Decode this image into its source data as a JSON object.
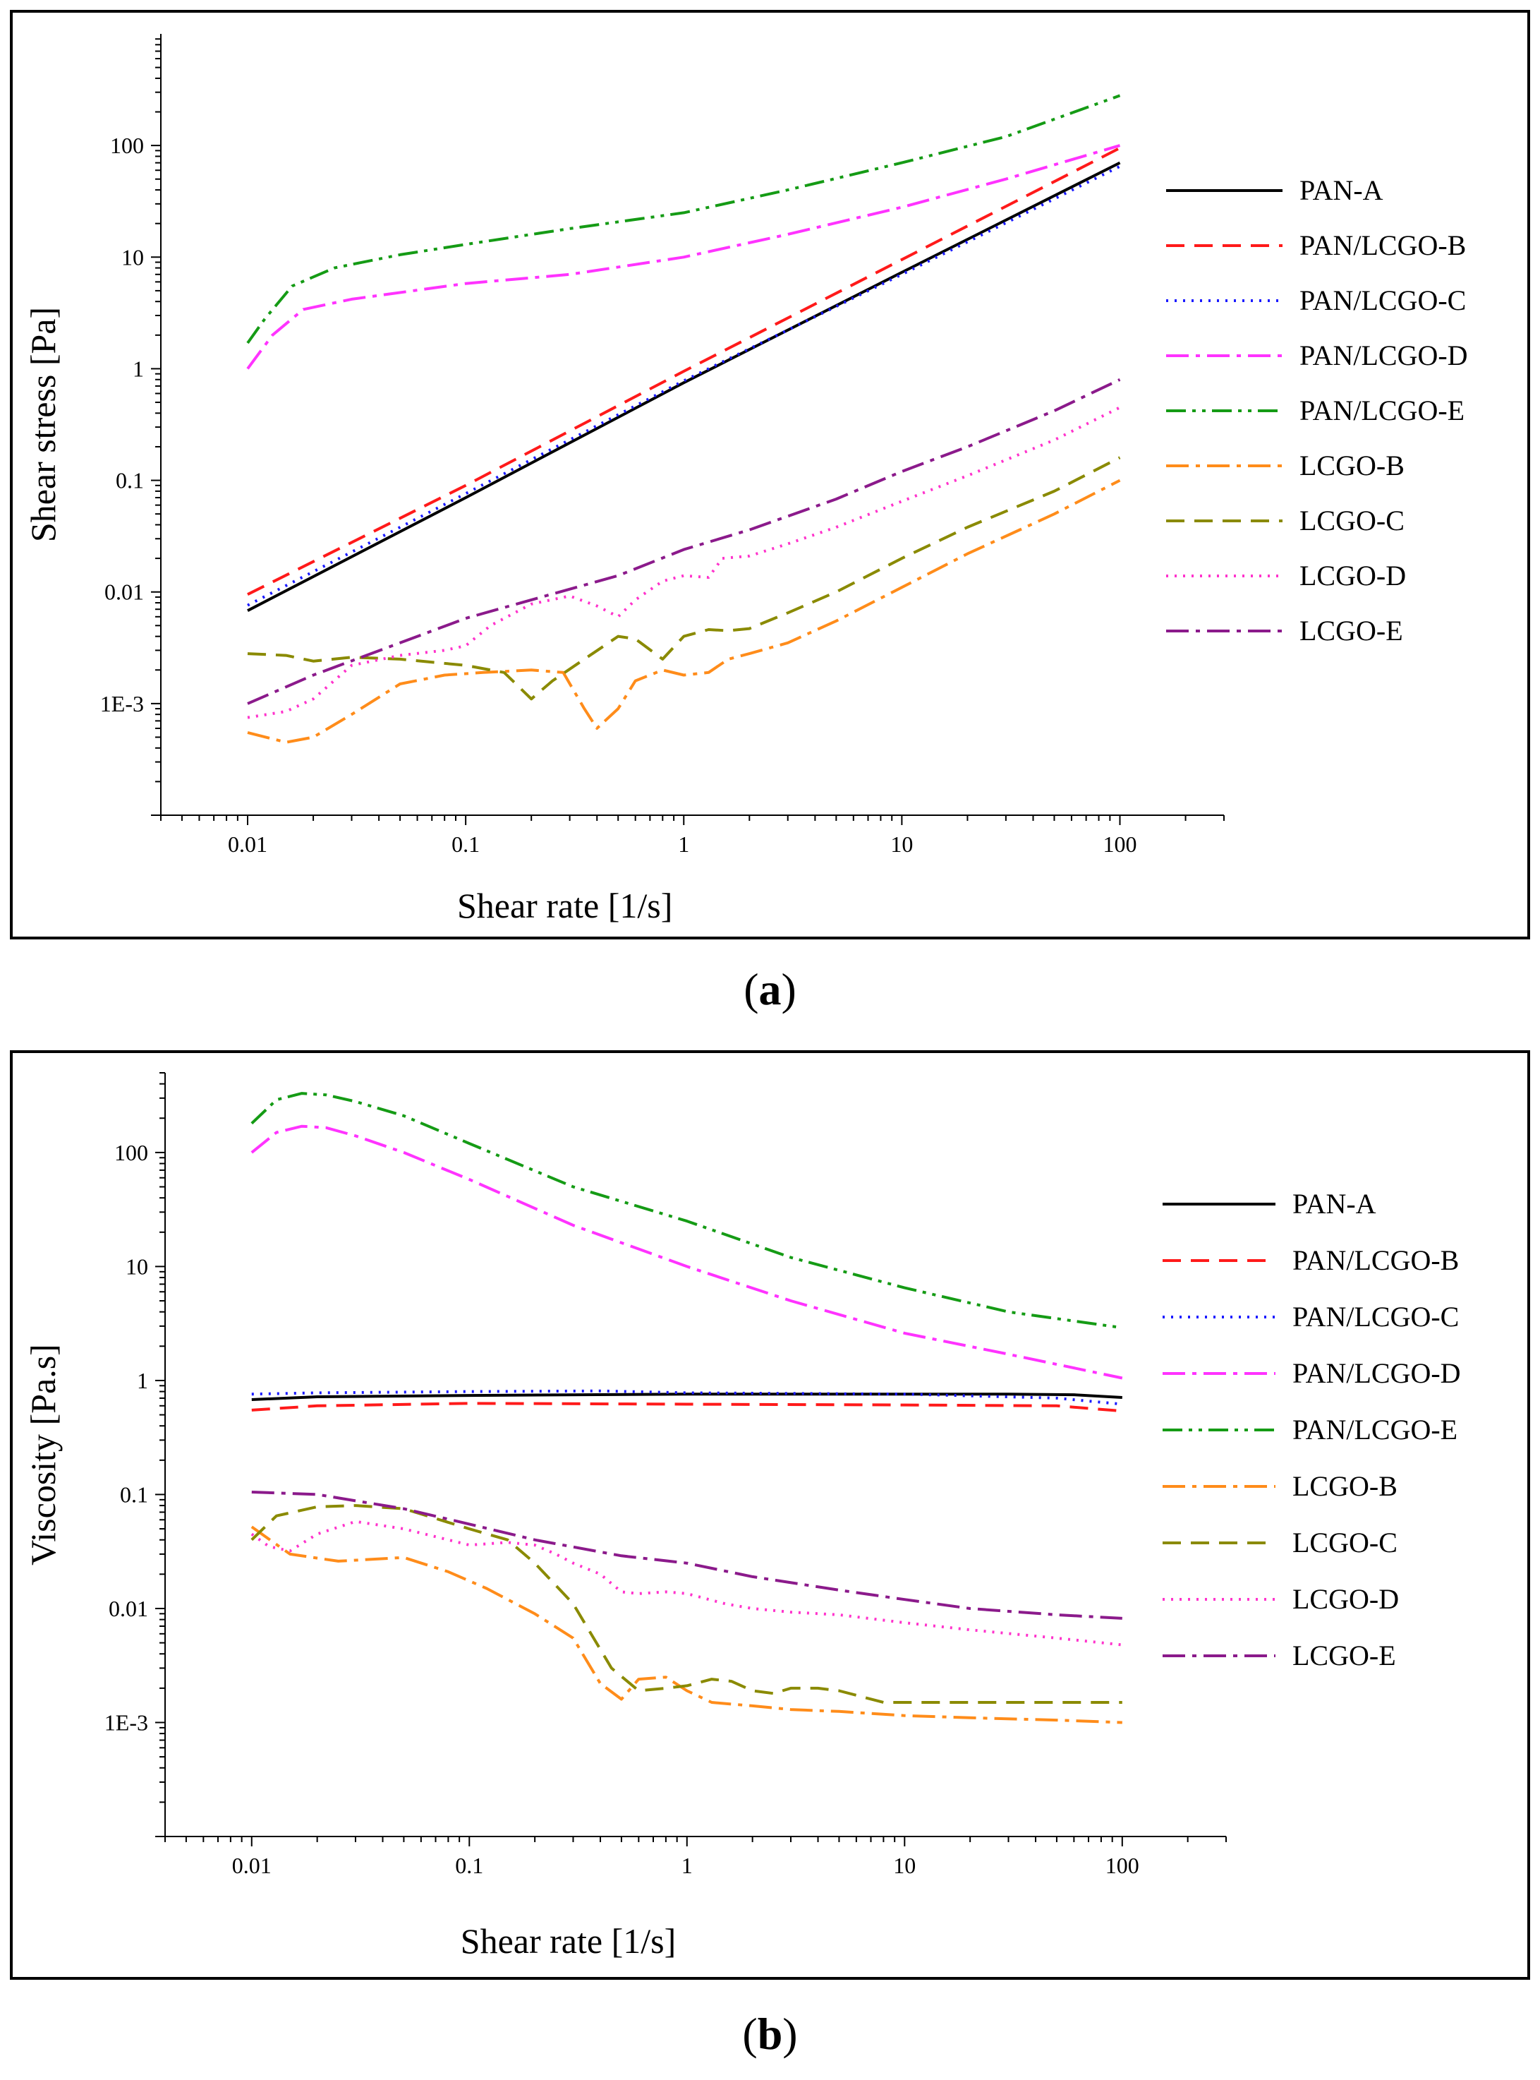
{
  "chart_data": [
    {
      "type": "line",
      "id": "a",
      "xlabel": "Shear rate [1/s]",
      "ylabel": "Shear stress [Pa]",
      "xscale": "log",
      "yscale": "log",
      "xlim": [
        0.004,
        300
      ],
      "ylim": [
        0.0001,
        1000
      ],
      "xticks": [
        {
          "v": 0.01,
          "label": "0.01"
        },
        {
          "v": 0.1,
          "label": "0.1"
        },
        {
          "v": 1,
          "label": "1"
        },
        {
          "v": 10,
          "label": "10"
        },
        {
          "v": 100,
          "label": "100"
        }
      ],
      "yticks": [
        {
          "v": 0.001,
          "label": "1E-3"
        },
        {
          "v": 0.01,
          "label": "0.01"
        },
        {
          "v": 0.1,
          "label": "0.1"
        },
        {
          "v": 1,
          "label": "1"
        },
        {
          "v": 10,
          "label": "10"
        },
        {
          "v": 100,
          "label": "100"
        }
      ],
      "legend_position": "right",
      "series": [
        {
          "name": "PAN-A",
          "color": "#000000",
          "dash": "solid",
          "x": [
            0.01,
            0.1,
            1,
            10,
            100
          ],
          "y": [
            0.0068,
            0.07,
            0.75,
            7.3,
            70
          ]
        },
        {
          "name": "PAN/LCGO-B",
          "color": "#ff1a1a",
          "dash": "dashed",
          "x": [
            0.01,
            0.1,
            1,
            10,
            100
          ],
          "y": [
            0.0095,
            0.09,
            0.95,
            9.5,
            95
          ]
        },
        {
          "name": "PAN/LCGO-C",
          "color": "#1a1aff",
          "dash": "dotted",
          "x": [
            0.01,
            0.1,
            1,
            10,
            100
          ],
          "y": [
            0.0076,
            0.076,
            0.78,
            7.0,
            65
          ]
        },
        {
          "name": "PAN/LCGO-D",
          "color": "#ff33ff",
          "dash": "dashdot",
          "x": [
            0.01,
            0.013,
            0.018,
            0.03,
            0.1,
            0.3,
            1,
            3,
            10,
            30,
            100
          ],
          "y": [
            1.0,
            2.0,
            3.4,
            4.2,
            5.8,
            7.0,
            10.0,
            16,
            28,
            50,
            100
          ]
        },
        {
          "name": "PAN/LCGO-E",
          "color": "#159b15",
          "dash": "dashdotdot",
          "x": [
            0.01,
            0.012,
            0.016,
            0.025,
            0.05,
            0.1,
            0.3,
            1,
            3,
            10,
            30,
            100
          ],
          "y": [
            1.7,
            2.8,
            5.5,
            8.0,
            10.5,
            13,
            18,
            25,
            40,
            70,
            120,
            280
          ]
        },
        {
          "name": "LCGO-B",
          "color": "#ff8c1a",
          "dash": "dashdot",
          "x": [
            0.01,
            0.015,
            0.02,
            0.03,
            0.05,
            0.08,
            0.12,
            0.2,
            0.28,
            0.35,
            0.4,
            0.5,
            0.6,
            0.8,
            1.0,
            1.3,
            1.6,
            2.0,
            3.0,
            5.0,
            10,
            20,
            50,
            100
          ],
          "y": [
            0.00055,
            0.00045,
            0.0005,
            0.0008,
            0.0015,
            0.0018,
            0.0019,
            0.002,
            0.0019,
            0.0009,
            0.0006,
            0.0009,
            0.0016,
            0.002,
            0.0018,
            0.0019,
            0.0025,
            0.0028,
            0.0035,
            0.0055,
            0.011,
            0.022,
            0.05,
            0.1
          ]
        },
        {
          "name": "LCGO-C",
          "color": "#8a8a00",
          "dash": "dashed",
          "x": [
            0.01,
            0.015,
            0.02,
            0.03,
            0.05,
            0.1,
            0.15,
            0.2,
            0.25,
            0.35,
            0.5,
            0.6,
            0.8,
            1.0,
            1.3,
            1.6,
            2.0,
            3.0,
            5.0,
            10,
            20,
            50,
            100
          ],
          "y": [
            0.0028,
            0.0027,
            0.0024,
            0.0026,
            0.0025,
            0.0022,
            0.0019,
            0.0011,
            0.0016,
            0.0025,
            0.004,
            0.0038,
            0.0025,
            0.004,
            0.0046,
            0.0045,
            0.0047,
            0.0065,
            0.01,
            0.02,
            0.038,
            0.08,
            0.16
          ]
        },
        {
          "name": "LCGO-D",
          "color": "#ff33cc",
          "dash": "dotted",
          "x": [
            0.01,
            0.015,
            0.02,
            0.03,
            0.05,
            0.08,
            0.1,
            0.13,
            0.2,
            0.3,
            0.4,
            0.5,
            0.6,
            0.8,
            1.0,
            1.3,
            1.5,
            2.0,
            3.0,
            5.0,
            10,
            20,
            50,
            100
          ],
          "y": [
            0.00075,
            0.00085,
            0.0011,
            0.0022,
            0.0027,
            0.003,
            0.0033,
            0.005,
            0.0078,
            0.0092,
            0.0075,
            0.006,
            0.0085,
            0.0125,
            0.014,
            0.0135,
            0.02,
            0.021,
            0.027,
            0.038,
            0.065,
            0.11,
            0.23,
            0.45
          ]
        },
        {
          "name": "LCGO-E",
          "color": "#8b1a8b",
          "dash": "dashdot",
          "x": [
            0.01,
            0.02,
            0.05,
            0.1,
            0.2,
            0.5,
            1,
            2,
            5,
            10,
            20,
            50,
            100
          ],
          "y": [
            0.001,
            0.0018,
            0.0035,
            0.0058,
            0.0085,
            0.014,
            0.024,
            0.036,
            0.068,
            0.12,
            0.2,
            0.42,
            0.8
          ]
        }
      ]
    },
    {
      "type": "line",
      "id": "b",
      "xlabel": "Shear rate [1/s]",
      "ylabel": "Viscosity [Pa.s]",
      "xscale": "log",
      "yscale": "log",
      "xlim": [
        0.004,
        300
      ],
      "ylim": [
        0.0001,
        500
      ],
      "xticks": [
        {
          "v": 0.01,
          "label": "0.01"
        },
        {
          "v": 0.1,
          "label": "0.1"
        },
        {
          "v": 1,
          "label": "1"
        },
        {
          "v": 10,
          "label": "10"
        },
        {
          "v": 100,
          "label": "100"
        }
      ],
      "yticks": [
        {
          "v": 0.001,
          "label": "1E-3"
        },
        {
          "v": 0.01,
          "label": "0.01"
        },
        {
          "v": 0.1,
          "label": "0.1"
        },
        {
          "v": 1,
          "label": "1"
        },
        {
          "v": 10,
          "label": "10"
        },
        {
          "v": 100,
          "label": "100"
        }
      ],
      "legend_position": "right",
      "series": [
        {
          "name": "PAN-A",
          "color": "#000000",
          "dash": "solid",
          "x": [
            0.01,
            0.02,
            0.1,
            1,
            10,
            30,
            60,
            100
          ],
          "y": [
            0.68,
            0.72,
            0.74,
            0.76,
            0.76,
            0.76,
            0.75,
            0.71
          ]
        },
        {
          "name": "PAN/LCGO-B",
          "color": "#ff1a1a",
          "dash": "dashed",
          "x": [
            0.01,
            0.02,
            0.1,
            1,
            10,
            50,
            100
          ],
          "y": [
            0.55,
            0.6,
            0.63,
            0.62,
            0.61,
            0.6,
            0.54
          ]
        },
        {
          "name": "PAN/LCGO-C",
          "color": "#1a1aff",
          "dash": "dotted",
          "x": [
            0.01,
            0.02,
            0.1,
            0.4,
            1,
            10,
            50,
            100
          ],
          "y": [
            0.76,
            0.78,
            0.8,
            0.81,
            0.78,
            0.76,
            0.7,
            0.62
          ]
        },
        {
          "name": "PAN/LCGO-D",
          "color": "#ff33ff",
          "dash": "dashdot",
          "x": [
            0.01,
            0.013,
            0.017,
            0.022,
            0.03,
            0.05,
            0.1,
            0.3,
            1,
            3,
            10,
            30,
            100
          ],
          "y": [
            100,
            150,
            170,
            165,
            140,
            100,
            58,
            23,
            10,
            5,
            2.6,
            1.7,
            1.05
          ]
        },
        {
          "name": "PAN/LCGO-E",
          "color": "#159b15",
          "dash": "dashdotdot",
          "x": [
            0.01,
            0.013,
            0.017,
            0.022,
            0.03,
            0.05,
            0.1,
            0.3,
            1,
            3,
            10,
            30,
            100
          ],
          "y": [
            180,
            290,
            330,
            320,
            280,
            210,
            120,
            50,
            25,
            12,
            6.5,
            4,
            2.9
          ]
        },
        {
          "name": "LCGO-B",
          "color": "#ff8c1a",
          "dash": "dashdot",
          "x": [
            0.01,
            0.015,
            0.025,
            0.05,
            0.08,
            0.12,
            0.2,
            0.3,
            0.4,
            0.5,
            0.6,
            0.8,
            1.0,
            1.3,
            1.6,
            2.0,
            3.0,
            5.0,
            10,
            20,
            50,
            100
          ],
          "y": [
            0.052,
            0.03,
            0.026,
            0.028,
            0.021,
            0.015,
            0.009,
            0.0055,
            0.0022,
            0.0016,
            0.0024,
            0.0025,
            0.0019,
            0.0015,
            0.00145,
            0.0014,
            0.0013,
            0.00125,
            0.00115,
            0.0011,
            0.00105,
            0.001
          ]
        },
        {
          "name": "LCGO-C",
          "color": "#8a8a00",
          "dash": "dashed",
          "x": [
            0.01,
            0.013,
            0.02,
            0.03,
            0.05,
            0.1,
            0.15,
            0.2,
            0.3,
            0.45,
            0.6,
            0.8,
            1.0,
            1.3,
            1.6,
            2.0,
            2.5,
            3.0,
            4.0,
            5.0,
            8,
            20,
            50,
            100
          ],
          "y": [
            0.04,
            0.065,
            0.078,
            0.08,
            0.075,
            0.05,
            0.04,
            0.025,
            0.011,
            0.003,
            0.0019,
            0.002,
            0.0021,
            0.0024,
            0.0023,
            0.0019,
            0.0018,
            0.002,
            0.002,
            0.0019,
            0.0015,
            0.0015,
            0.0015,
            0.0015
          ]
        },
        {
          "name": "LCGO-D",
          "color": "#ff33cc",
          "dash": "dotted",
          "x": [
            0.01,
            0.012,
            0.015,
            0.02,
            0.03,
            0.05,
            0.08,
            0.1,
            0.15,
            0.2,
            0.25,
            0.3,
            0.4,
            0.5,
            0.6,
            0.8,
            1.0,
            1.5,
            2.0,
            3.0,
            5.0,
            10,
            20,
            50,
            100
          ],
          "y": [
            0.045,
            0.035,
            0.032,
            0.045,
            0.058,
            0.05,
            0.04,
            0.036,
            0.038,
            0.036,
            0.03,
            0.025,
            0.02,
            0.014,
            0.0135,
            0.014,
            0.0135,
            0.011,
            0.01,
            0.0093,
            0.0088,
            0.0075,
            0.0065,
            0.0055,
            0.0048
          ]
        },
        {
          "name": "LCGO-E",
          "color": "#8b1a8b",
          "dash": "dashdot",
          "x": [
            0.01,
            0.02,
            0.05,
            0.1,
            0.2,
            0.5,
            1,
            2,
            5,
            10,
            20,
            50,
            100
          ],
          "y": [
            0.105,
            0.1,
            0.075,
            0.055,
            0.04,
            0.029,
            0.025,
            0.019,
            0.0145,
            0.012,
            0.01,
            0.0088,
            0.0082
          ]
        }
      ]
    }
  ],
  "captions": {
    "a": "a",
    "b": "b",
    "open": "(",
    "close": ")"
  }
}
